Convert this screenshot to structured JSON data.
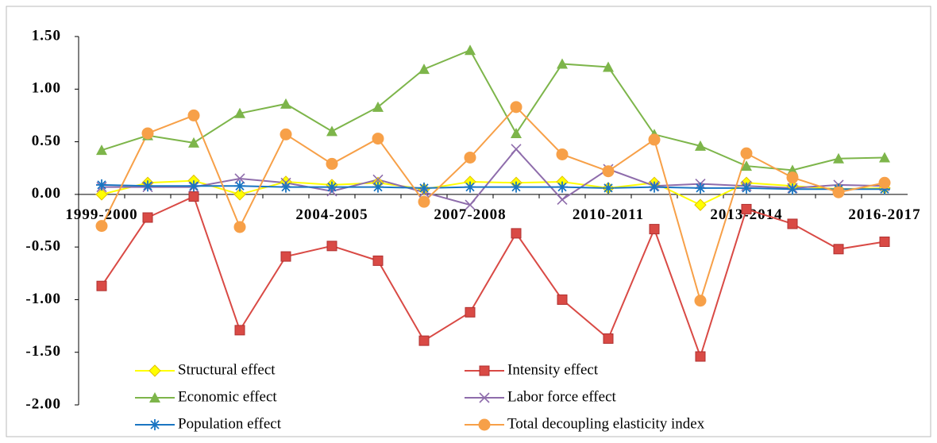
{
  "chart_data": {
    "type": "line",
    "categories": [
      "1999-2000",
      null,
      null,
      null,
      null,
      "2004-2005",
      null,
      null,
      "2007-2008",
      null,
      null,
      "2010-2011",
      null,
      null,
      "2013-2014",
      null,
      null,
      "2016-2017"
    ],
    "series": [
      {
        "name": "Structural effect",
        "color": "#ffff00",
        "marker": "diamond",
        "values": [
          0.0,
          0.11,
          0.13,
          0.0,
          0.12,
          0.09,
          0.11,
          0.05,
          0.12,
          0.11,
          0.12,
          0.06,
          0.11,
          -0.1,
          0.11,
          0.08,
          0.05,
          0.06
        ]
      },
      {
        "name": "Intensity effect",
        "color": "#d94a45",
        "marker": "square",
        "values": [
          -0.87,
          -0.22,
          -0.02,
          -1.29,
          -0.59,
          -0.49,
          -0.63,
          -1.39,
          -1.12,
          -0.37,
          -1.0,
          -1.37,
          -0.33,
          -1.54,
          -0.14,
          -0.28,
          -0.52,
          -0.45
        ]
      },
      {
        "name": "Economic effect",
        "color": "#7db54a",
        "marker": "triangle",
        "values": [
          0.42,
          0.56,
          0.49,
          0.77,
          0.86,
          0.6,
          0.83,
          1.19,
          1.37,
          0.58,
          1.24,
          1.21,
          0.57,
          0.46,
          0.27,
          0.23,
          0.34,
          0.35
        ]
      },
      {
        "name": "Labor force effect",
        "color": "#8e6cab",
        "marker": "x",
        "values": [
          0.07,
          0.07,
          0.07,
          0.15,
          0.11,
          0.03,
          0.14,
          0.02,
          -0.1,
          0.43,
          -0.05,
          0.24,
          0.08,
          0.1,
          0.08,
          0.06,
          0.09,
          0.08
        ]
      },
      {
        "name": "Population effect",
        "color": "#1a75c2",
        "marker": "asterisk",
        "values": [
          0.09,
          0.08,
          0.08,
          0.08,
          0.07,
          0.07,
          0.07,
          0.06,
          0.07,
          0.07,
          0.07,
          0.06,
          0.07,
          0.06,
          0.06,
          0.05,
          0.05,
          0.05
        ]
      },
      {
        "name": "Total decoupling elasticity index",
        "color": "#f7a048",
        "marker": "circle",
        "values": [
          -0.3,
          0.58,
          0.75,
          -0.31,
          0.57,
          0.29,
          0.53,
          -0.07,
          0.35,
          0.83,
          0.38,
          0.22,
          0.52,
          -1.01,
          0.39,
          0.16,
          0.02,
          0.11
        ]
      }
    ],
    "ylim": [
      -2.0,
      1.5
    ],
    "yticks": [
      {
        "value": -2.0,
        "label": "-2.00"
      },
      {
        "value": -1.5,
        "label": "-1.50"
      },
      {
        "value": -1.0,
        "label": "-1.00"
      },
      {
        "value": -0.5,
        "label": "-0.50"
      },
      {
        "value": 0,
        "label": "0.00"
      },
      {
        "value": 0.5,
        "label": "0.50"
      },
      {
        "value": 1.0,
        "label": "1.00"
      },
      {
        "value": 1.5,
        "label": "1.50"
      }
    ],
    "grid": false,
    "legend": "bottom"
  }
}
